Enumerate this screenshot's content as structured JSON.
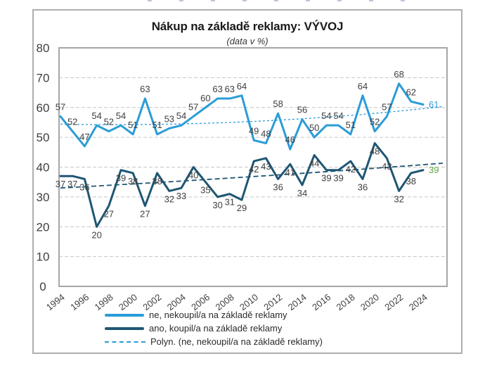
{
  "chart_data": {
    "type": "line",
    "title": "Nákup na základě reklamy: VÝVOJ",
    "subtitle": "(data v %)",
    "years": [
      1994,
      1995,
      1996,
      1997,
      1998,
      1999,
      2000,
      2001,
      2002,
      2003,
      2004,
      2005,
      2006,
      2007,
      2008,
      2009,
      2010,
      2011,
      2012,
      2013,
      2014,
      2015,
      2016,
      2017,
      2018,
      2019,
      2020,
      2021,
      2022,
      2023,
      2024
    ],
    "x_tick_labels": [
      "1994",
      "1996",
      "1998",
      "2000",
      "2002",
      "2004",
      "2006",
      "2008",
      "2010",
      "2012",
      "2014",
      "2016",
      "2018",
      "2020",
      "2022",
      "2024"
    ],
    "ylim": [
      0,
      80
    ],
    "y_ticks": [
      0,
      10,
      20,
      30,
      40,
      50,
      60,
      70,
      80
    ],
    "grid": "horizontal-dashed",
    "legend_position": "bottom",
    "colors": {
      "light_blue": "#2B9CD8",
      "dark_blue": "#1F5673",
      "green_last_label": "#5FA640",
      "data_label_gray": "#3F3F3F",
      "grid_gray": "#C6C6C6",
      "border_gray": "#A6A6A6"
    },
    "series": [
      {
        "name": "ne, nekoupil/a na základě reklamy",
        "color": "#2B9CD8",
        "label_placement": "above",
        "last_label_color": "#2B9CD8",
        "values": [
          57,
          52,
          47,
          54,
          52,
          54,
          51,
          63,
          51,
          53,
          54,
          57,
          60,
          63,
          63,
          64,
          49,
          48,
          58,
          46,
          56,
          50,
          54,
          54,
          51,
          64,
          52,
          57,
          68,
          62,
          61
        ]
      },
      {
        "name": "ano, koupil/a na základě reklamy",
        "color": "#1F5673",
        "label_placement": "below",
        "last_label_color": "#5FA640",
        "values": [
          37,
          37,
          36,
          20,
          27,
          39,
          38,
          27,
          38,
          32,
          33,
          40,
          35,
          30,
          31,
          29,
          42,
          43,
          36,
          41,
          34,
          44,
          39,
          39,
          42,
          36,
          48,
          43,
          32,
          38,
          39
        ]
      }
    ],
    "trendlines": [
      {
        "legend_label": "Polyn. (ne, nekoupil/a na základě reklamy)",
        "series": 0,
        "color": "#2B9CD8",
        "dash": "fine",
        "in_legend": true,
        "values_pct": [
          54.4,
          55.3,
          60.3
        ]
      },
      {
        "series": 1,
        "color": "#1F5673",
        "dash": "long",
        "in_legend": false,
        "values_pct": [
          33.0,
          36.8,
          41.3
        ]
      }
    ]
  }
}
